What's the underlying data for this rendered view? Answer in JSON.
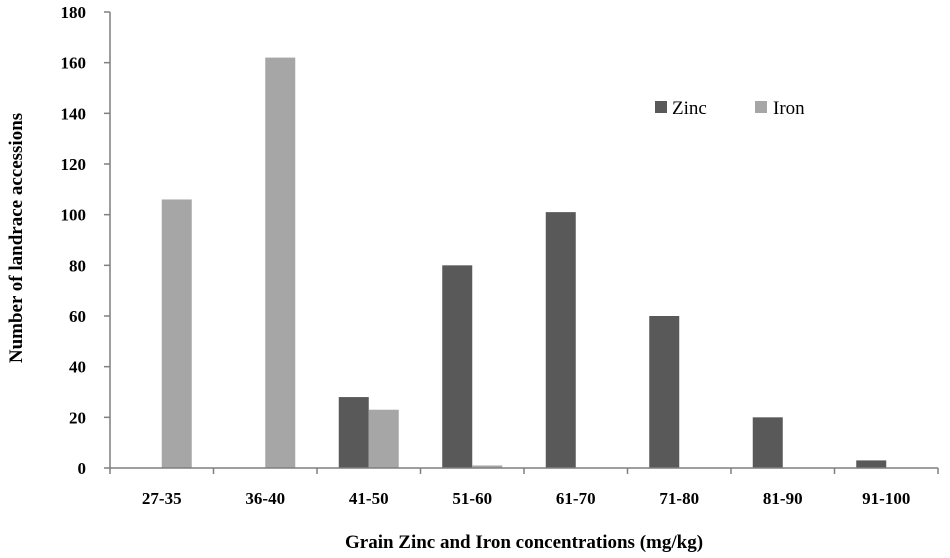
{
  "chart_data": {
    "type": "bar",
    "categories": [
      "27-35",
      "36-40",
      "41-50",
      "51-60",
      "61-70",
      "71-80",
      "81-90",
      "91-100"
    ],
    "series": [
      {
        "name": "Zinc",
        "color": "#595959",
        "values": [
          0,
          0,
          28,
          80,
          101,
          60,
          20,
          3
        ]
      },
      {
        "name": "Iron",
        "color": "#a6a6a6",
        "values": [
          106,
          162,
          23,
          1,
          0,
          0,
          0,
          0
        ]
      }
    ],
    "xlabel": "Grain Zinc and Iron concentrations (mg/kg)",
    "ylabel": "Number of landrace accessions",
    "ylim": [
      0,
      180
    ],
    "yticks": [
      0,
      20,
      40,
      60,
      80,
      100,
      120,
      140,
      160,
      180
    ],
    "grid": false,
    "legend_position": "top-right"
  }
}
